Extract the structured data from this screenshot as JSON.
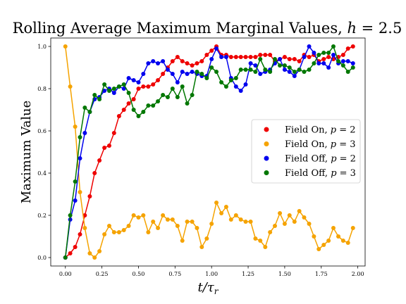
{
  "chart_data": {
    "type": "line",
    "title": "Rolling Average Maximum Marginal Values, h = 2.5",
    "title_parts": {
      "text": "Rolling Average Maximum Marginal Values, ",
      "var": "h",
      "rest": " = 2.5"
    },
    "xlabel": "t/τr",
    "xlabel_parts": {
      "t": "t/τ",
      "sub": "r"
    },
    "ylabel": "Maximum Value",
    "xlim": [
      -0.1,
      2.05
    ],
    "ylim": [
      -0.04,
      1.04
    ],
    "xticks": [
      "0.00",
      "0.25",
      "0.50",
      "0.75",
      "1.00",
      "1.25",
      "1.50",
      "1.75",
      "2.00"
    ],
    "yticks": [
      "0.0",
      "0.2",
      "0.4",
      "0.6",
      "0.8",
      "1.0"
    ],
    "grid": false,
    "legend": "center-right",
    "x": [
      0.0,
      0.033,
      0.067,
      0.1,
      0.133,
      0.167,
      0.2,
      0.233,
      0.267,
      0.3,
      0.333,
      0.367,
      0.4,
      0.433,
      0.467,
      0.5,
      0.533,
      0.567,
      0.6,
      0.633,
      0.667,
      0.7,
      0.733,
      0.767,
      0.8,
      0.833,
      0.867,
      0.9,
      0.933,
      0.967,
      1.0,
      1.033,
      1.067,
      1.1,
      1.133,
      1.167,
      1.2,
      1.233,
      1.267,
      1.3,
      1.333,
      1.367,
      1.4,
      1.433,
      1.467,
      1.5,
      1.533,
      1.567,
      1.6,
      1.633,
      1.667,
      1.7,
      1.733,
      1.767,
      1.8,
      1.833,
      1.867,
      1.9,
      1.933,
      1.967
    ],
    "series": [
      {
        "name": "Field On, p = 2",
        "label_parts": {
          "text": "Field On, ",
          "var": "p",
          "rest": " = 2"
        },
        "color": "#ee0000",
        "values": [
          0.0,
          0.02,
          0.05,
          0.11,
          0.2,
          0.29,
          0.4,
          0.46,
          0.52,
          0.53,
          0.59,
          0.67,
          0.7,
          0.73,
          0.75,
          0.8,
          0.81,
          0.81,
          0.82,
          0.84,
          0.87,
          0.9,
          0.93,
          0.95,
          0.93,
          0.92,
          0.91,
          0.92,
          0.93,
          0.96,
          0.98,
          1.0,
          0.96,
          0.96,
          0.95,
          0.95,
          0.95,
          0.95,
          0.95,
          0.95,
          0.96,
          0.96,
          0.96,
          0.93,
          0.94,
          0.95,
          0.94,
          0.94,
          0.93,
          0.96,
          0.95,
          0.96,
          0.93,
          0.94,
          0.95,
          0.94,
          0.95,
          0.96,
          0.99,
          1.0
        ]
      },
      {
        "name": "Field On, p = 3",
        "label_parts": {
          "text": "Field On, ",
          "var": "p",
          "rest": " = 3"
        },
        "color": "#f5a300",
        "values": [
          1.0,
          0.81,
          0.62,
          0.31,
          0.14,
          0.02,
          0.0,
          0.03,
          0.11,
          0.15,
          0.12,
          0.12,
          0.13,
          0.15,
          0.2,
          0.19,
          0.2,
          0.12,
          0.17,
          0.14,
          0.2,
          0.18,
          0.18,
          0.15,
          0.08,
          0.17,
          0.17,
          0.14,
          0.05,
          0.09,
          0.16,
          0.26,
          0.21,
          0.24,
          0.18,
          0.2,
          0.18,
          0.17,
          0.17,
          0.09,
          0.08,
          0.05,
          0.12,
          0.15,
          0.21,
          0.16,
          0.2,
          0.17,
          0.22,
          0.19,
          0.16,
          0.1,
          0.04,
          0.06,
          0.08,
          0.14,
          0.1,
          0.08,
          0.07,
          0.14
        ]
      },
      {
        "name": "Field Off, p = 2",
        "label_parts": {
          "text": "Field Off, ",
          "var": "p",
          "rest": " = 2"
        },
        "color": "#0000ee",
        "values": [
          0.0,
          0.18,
          0.27,
          0.47,
          0.59,
          0.69,
          0.75,
          0.76,
          0.79,
          0.8,
          0.78,
          0.81,
          0.8,
          0.85,
          0.84,
          0.83,
          0.87,
          0.92,
          0.93,
          0.92,
          0.93,
          0.89,
          0.87,
          0.83,
          0.88,
          0.87,
          0.88,
          0.87,
          0.86,
          0.86,
          0.94,
          0.99,
          0.95,
          0.95,
          0.85,
          0.81,
          0.79,
          0.82,
          0.92,
          0.91,
          0.87,
          0.88,
          0.89,
          0.92,
          0.94,
          0.89,
          0.88,
          0.86,
          0.89,
          0.95,
          1.0,
          0.97,
          0.92,
          0.92,
          0.9,
          0.96,
          0.92,
          0.93,
          0.93,
          0.92
        ]
      },
      {
        "name": "Field Off, p = 3",
        "label_parts": {
          "text": "Field Off, ",
          "var": "p",
          "rest": " = 3"
        },
        "color": "#007700",
        "values": [
          0.0,
          0.2,
          0.36,
          0.57,
          0.71,
          0.69,
          0.77,
          0.75,
          0.82,
          0.79,
          0.8,
          0.81,
          0.82,
          0.78,
          0.7,
          0.67,
          0.69,
          0.72,
          0.72,
          0.74,
          0.77,
          0.76,
          0.8,
          0.76,
          0.81,
          0.73,
          0.77,
          0.88,
          0.87,
          0.85,
          0.9,
          0.88,
          0.83,
          0.81,
          0.84,
          0.85,
          0.89,
          0.89,
          0.89,
          0.88,
          0.94,
          0.89,
          0.88,
          0.94,
          0.91,
          0.91,
          0.9,
          0.88,
          0.89,
          0.88,
          0.89,
          0.92,
          0.96,
          0.97,
          0.97,
          1.0,
          0.93,
          0.91,
          0.88,
          0.9
        ]
      }
    ]
  }
}
